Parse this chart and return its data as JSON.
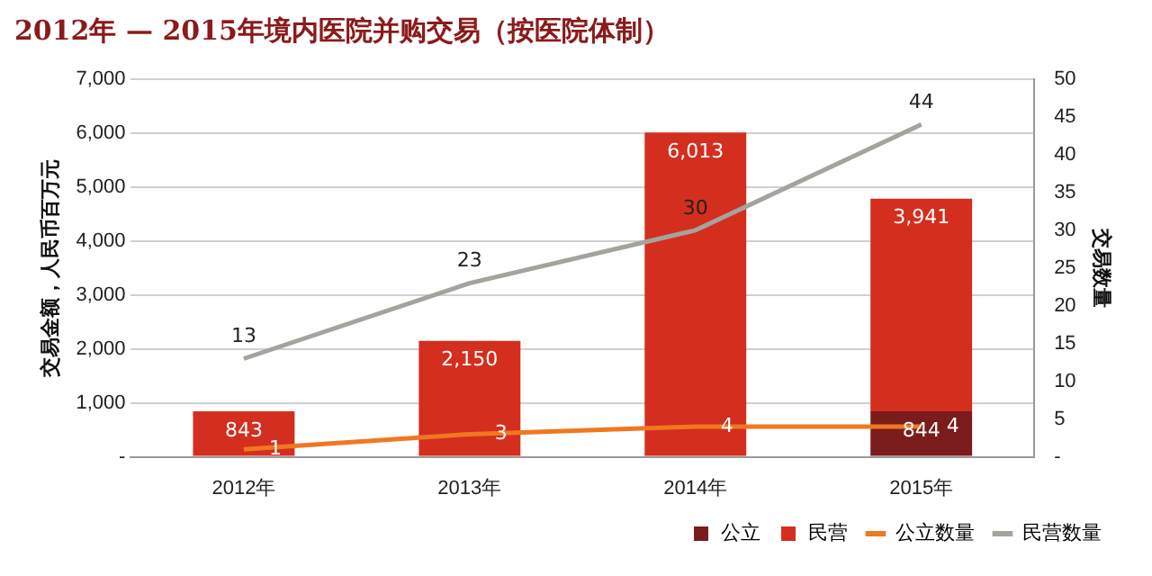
{
  "chart_data": {
    "type": "bar",
    "title": "2012年 — 2015年境内医院并购交易（按医院体制）",
    "ylabel": "交易金额，人民币百万元",
    "y2label": "交易数量",
    "categories": [
      "2012年",
      "2013年",
      "2014年",
      "2015年"
    ],
    "stacked": true,
    "series": [
      {
        "name": "公立",
        "color": "#7b1c1c",
        "values": [
          0,
          0,
          0,
          844
        ],
        "value_labels": [
          null,
          null,
          null,
          "844"
        ]
      },
      {
        "name": "民营",
        "color": "#d42e1e",
        "values": [
          843,
          2150,
          6013,
          3941
        ],
        "value_labels": [
          "843",
          "2,150",
          "6,013",
          "3,941"
        ]
      },
      {
        "name": "公立数量",
        "type": "line",
        "axis": "y2",
        "color": "#f07820",
        "values": [
          1,
          3,
          4,
          4
        ],
        "value_labels": [
          "1",
          "3",
          "4",
          "4"
        ]
      },
      {
        "name": "民营数量",
        "type": "line",
        "axis": "y2",
        "color": "#a6a29c",
        "values": [
          13,
          23,
          30,
          44
        ],
        "value_labels": [
          "13",
          "23",
          "30",
          "44"
        ]
      }
    ],
    "ylim": [
      0,
      7000
    ],
    "yticks": [
      {
        "value": 0,
        "label": "-"
      },
      {
        "value": 1000,
        "label": "1,000"
      },
      {
        "value": 2000,
        "label": "2,000"
      },
      {
        "value": 3000,
        "label": "3,000"
      },
      {
        "value": 4000,
        "label": "4,000"
      },
      {
        "value": 5000,
        "label": "5,000"
      },
      {
        "value": 6000,
        "label": "6,000"
      },
      {
        "value": 7000,
        "label": "7,000"
      }
    ],
    "y2lim": [
      0,
      50
    ],
    "y2ticks": [
      {
        "value": 0,
        "label": "-"
      },
      5,
      10,
      15,
      20,
      25,
      30,
      35,
      40,
      45,
      50
    ],
    "grid": "y",
    "legend": "bottom right",
    "marker": "none",
    "line_style": "solid"
  }
}
